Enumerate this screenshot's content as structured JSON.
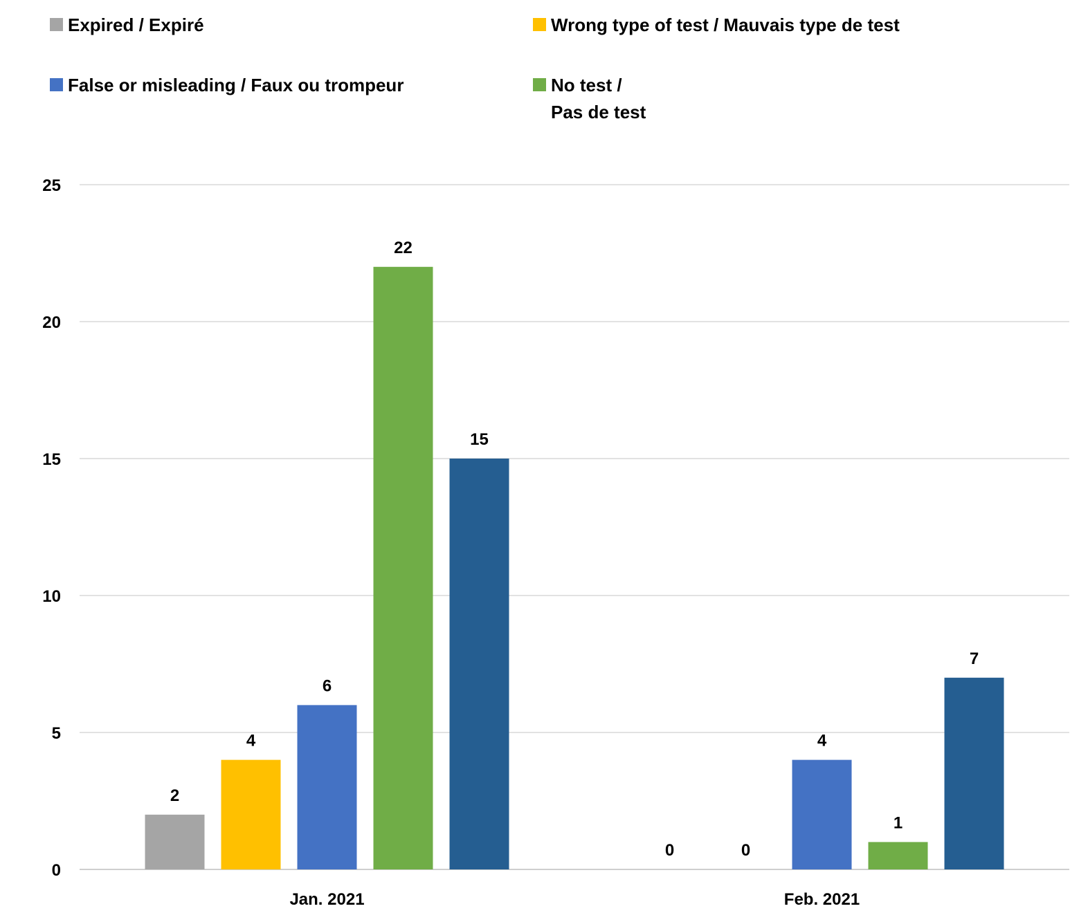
{
  "chart_data": {
    "type": "bar",
    "categories": [
      "Jan. 2021",
      "Feb. 2021"
    ],
    "series": [
      {
        "name": "Expired / Expiré",
        "color": "#a5a5a5",
        "values": [
          2,
          0
        ]
      },
      {
        "name": "Wrong type of test / Mauvais type de test",
        "color": "#ffc000",
        "values": [
          4,
          0
        ]
      },
      {
        "name": "False or misleading / Faux ou trompeur",
        "color": "#4472c4",
        "values": [
          6,
          4
        ]
      },
      {
        "name": "No test / Pas de test",
        "color": "#70ad47",
        "values": [
          22,
          1
        ]
      },
      {
        "name": "",
        "color": "#255e91",
        "values": [
          15,
          7
        ]
      }
    ],
    "yticks": [
      0,
      5,
      10,
      15,
      20,
      25
    ],
    "ylim": [
      0,
      25
    ],
    "grid": true,
    "legend_position": "top",
    "xlabel": "",
    "ylabel": "",
    "title": ""
  }
}
